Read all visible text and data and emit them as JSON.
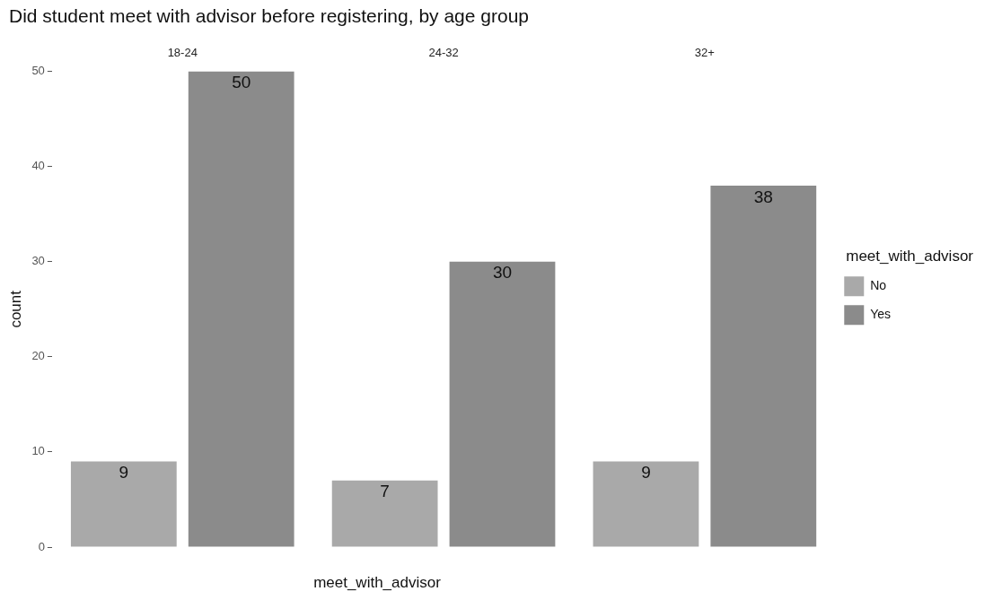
{
  "chart_data": {
    "type": "bar",
    "title": "Did student meet with advisor before registering, by age group",
    "xlabel": "meet_with_advisor",
    "ylabel": "count",
    "legend_title": "meet_with_advisor",
    "categories": [
      "18-24",
      "24-32",
      "32+"
    ],
    "series": [
      {
        "name": "No",
        "color": "#a9a9a9",
        "values": [
          9,
          7,
          9
        ]
      },
      {
        "name": "Yes",
        "color": "#8b8b8b",
        "values": [
          50,
          30,
          38
        ]
      }
    ],
    "ylim": [
      0,
      50
    ],
    "yticks": [
      0,
      10,
      20,
      30,
      40,
      50
    ],
    "grid": false,
    "legend": "right",
    "data_labels": true
  }
}
